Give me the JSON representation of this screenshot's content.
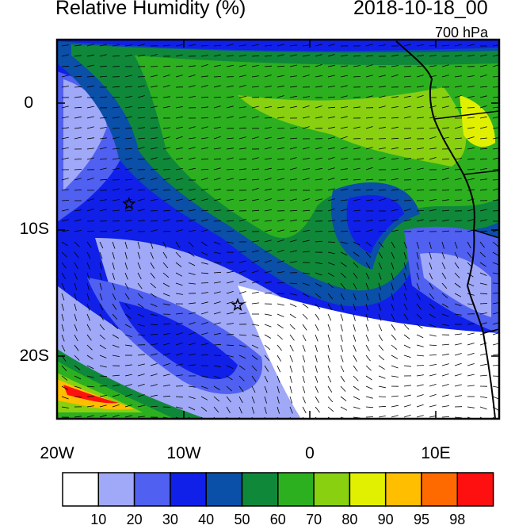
{
  "header": {
    "title": "Relative Humidity (%)",
    "datetime": "2018-10-18_00",
    "level": "700 hPa"
  },
  "axes": {
    "y_ticks": [
      "0",
      "10S",
      "20S"
    ],
    "x_ticks": [
      "20W",
      "10W",
      "0",
      "10E"
    ]
  },
  "colorbar": {
    "labels": [
      "10",
      "20",
      "30",
      "40",
      "50",
      "60",
      "70",
      "80",
      "90",
      "95",
      "98"
    ],
    "colors": [
      "#ffffff",
      "#a0a8f8",
      "#5060f0",
      "#1020e8",
      "#0a4fa8",
      "#10883a",
      "#2cb020",
      "#88d010",
      "#e0f000",
      "#ffbe00",
      "#ff6a00",
      "#ff1010"
    ]
  },
  "map": {
    "extent": {
      "lon": [
        -20,
        15
      ],
      "lat": [
        -25,
        5
      ]
    },
    "markers": [
      {
        "symbol": "star",
        "lon": -14.3,
        "lat": -8
      },
      {
        "symbol": "star",
        "lon": -5.7,
        "lat": -16
      }
    ]
  }
}
